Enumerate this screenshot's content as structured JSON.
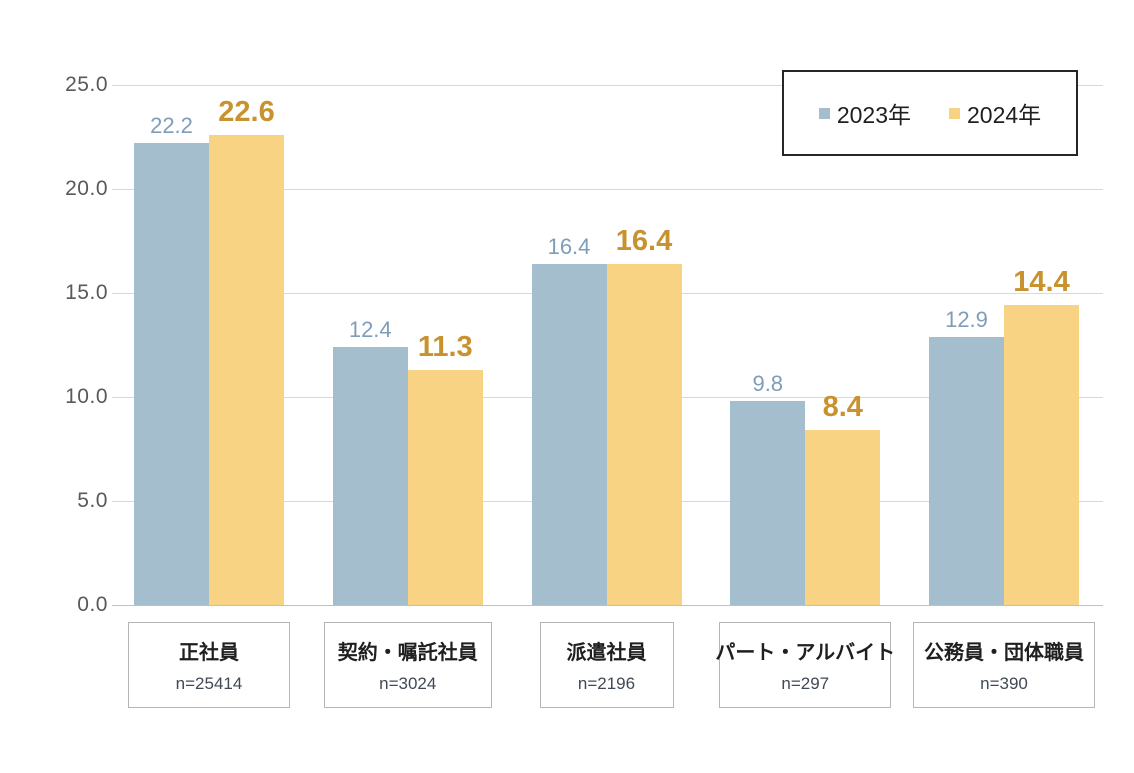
{
  "chart_data": {
    "type": "bar",
    "title": "",
    "categories": [
      "正社員",
      "契約・嘱託社員",
      "派遣社員",
      "パート・アルバイト",
      "公務員・団体職員"
    ],
    "sample_sizes": [
      "n=25414",
      "n=3024",
      "n=2196",
      "n=297",
      "n=390"
    ],
    "series": [
      {
        "name": "2023年",
        "key": "2023",
        "color": "#A5BECD",
        "label_color": "#7F9DB8",
        "values": [
          22.2,
          12.4,
          16.4,
          9.8,
          12.9
        ]
      },
      {
        "name": "2024年",
        "key": "2024",
        "color": "#F8D384",
        "label_color": "#C8922F",
        "values": [
          22.6,
          11.3,
          16.4,
          8.4,
          14.4
        ]
      }
    ],
    "y_axis": {
      "min": 0,
      "max": 25,
      "step": 5,
      "tick_values": [
        0,
        5,
        10,
        15,
        20,
        25
      ],
      "tick_labels": [
        "0.0",
        "5.0",
        "10.0",
        "15.0",
        "20.0",
        "25.0"
      ]
    },
    "grid": true,
    "legend_position": "top-right",
    "colors": {
      "background": "#FFFFFF",
      "axis_text": "#595959",
      "gridline": "#D9D9D9",
      "baseline": "#C0C0C0",
      "legend_border": "#262626",
      "legend_text": "#1F1F1F",
      "category_border": "#B5B5B5",
      "category_name_text": "#1F1F1F",
      "category_n_text": "#3F4A55"
    }
  }
}
